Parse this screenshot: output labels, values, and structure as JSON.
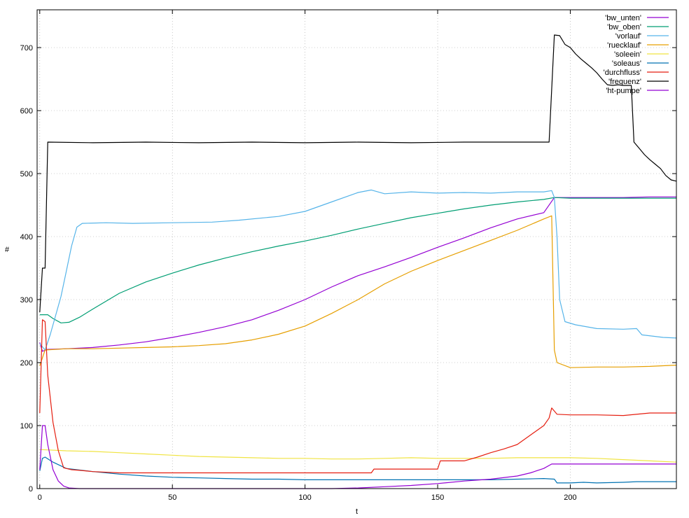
{
  "chart_data": {
    "type": "line",
    "title": "",
    "xlabel": "t",
    "ylabel": "#",
    "xlim": [
      -1,
      240
    ],
    "ylim": [
      0,
      760
    ],
    "x_ticks": [
      0,
      50,
      100,
      150,
      200
    ],
    "y_ticks": [
      0,
      100,
      200,
      300,
      400,
      500,
      600,
      700
    ],
    "grid": true,
    "legend_position": "top-right",
    "series": [
      {
        "name": "'bw_unten'",
        "color": "#9400d3",
        "points": [
          [
            0,
            232
          ],
          [
            1,
            218
          ],
          [
            3,
            221
          ],
          [
            10,
            222
          ],
          [
            20,
            224
          ],
          [
            30,
            228
          ],
          [
            40,
            233
          ],
          [
            50,
            240
          ],
          [
            60,
            248
          ],
          [
            70,
            257
          ],
          [
            80,
            268
          ],
          [
            90,
            283
          ],
          [
            100,
            300
          ],
          [
            110,
            320
          ],
          [
            120,
            338
          ],
          [
            130,
            352
          ],
          [
            140,
            367
          ],
          [
            150,
            383
          ],
          [
            160,
            398
          ],
          [
            170,
            414
          ],
          [
            180,
            428
          ],
          [
            190,
            438
          ],
          [
            194,
            462
          ],
          [
            200,
            462
          ],
          [
            210,
            462
          ],
          [
            220,
            462
          ],
          [
            230,
            463
          ],
          [
            240,
            463
          ]
        ]
      },
      {
        "name": "'bw_oben'",
        "color": "#009e73",
        "points": [
          [
            0,
            276
          ],
          [
            3,
            276
          ],
          [
            5,
            270
          ],
          [
            8,
            263
          ],
          [
            11,
            264
          ],
          [
            15,
            272
          ],
          [
            20,
            285
          ],
          [
            30,
            310
          ],
          [
            40,
            328
          ],
          [
            50,
            342
          ],
          [
            60,
            355
          ],
          [
            70,
            366
          ],
          [
            80,
            376
          ],
          [
            90,
            385
          ],
          [
            100,
            393
          ],
          [
            110,
            402
          ],
          [
            120,
            412
          ],
          [
            130,
            421
          ],
          [
            140,
            430
          ],
          [
            150,
            437
          ],
          [
            160,
            444
          ],
          [
            170,
            450
          ],
          [
            180,
            455
          ],
          [
            190,
            459
          ],
          [
            194,
            462
          ],
          [
            200,
            461
          ],
          [
            210,
            461
          ],
          [
            220,
            461
          ],
          [
            230,
            461
          ],
          [
            240,
            461
          ]
        ]
      },
      {
        "name": "'vorlauf'",
        "color": "#56b4e9",
        "points": [
          [
            0,
            230
          ],
          [
            2,
            220
          ],
          [
            4,
            245
          ],
          [
            6,
            275
          ],
          [
            8,
            305
          ],
          [
            10,
            345
          ],
          [
            12,
            385
          ],
          [
            14,
            415
          ],
          [
            16,
            421
          ],
          [
            25,
            422
          ],
          [
            35,
            421
          ],
          [
            50,
            422
          ],
          [
            65,
            423
          ],
          [
            75,
            426
          ],
          [
            90,
            432
          ],
          [
            100,
            440
          ],
          [
            110,
            455
          ],
          [
            120,
            470
          ],
          [
            125,
            474
          ],
          [
            130,
            468
          ],
          [
            140,
            471
          ],
          [
            150,
            469
          ],
          [
            160,
            470
          ],
          [
            170,
            469
          ],
          [
            180,
            471
          ],
          [
            190,
            471
          ],
          [
            193,
            473
          ],
          [
            194,
            462
          ],
          [
            195,
            400
          ],
          [
            196,
            300
          ],
          [
            198,
            265
          ],
          [
            202,
            260
          ],
          [
            210,
            254
          ],
          [
            220,
            253
          ],
          [
            225,
            254
          ],
          [
            227,
            244
          ],
          [
            235,
            240
          ],
          [
            240,
            239
          ]
        ]
      },
      {
        "name": "'ruecklauf'",
        "color": "#e69f00",
        "points": [
          [
            0,
            195
          ],
          [
            2,
            220
          ],
          [
            10,
            222
          ],
          [
            20,
            222
          ],
          [
            30,
            223
          ],
          [
            40,
            224
          ],
          [
            50,
            225
          ],
          [
            60,
            227
          ],
          [
            70,
            230
          ],
          [
            80,
            236
          ],
          [
            90,
            245
          ],
          [
            100,
            258
          ],
          [
            110,
            278
          ],
          [
            120,
            300
          ],
          [
            130,
            325
          ],
          [
            140,
            345
          ],
          [
            150,
            362
          ],
          [
            160,
            378
          ],
          [
            170,
            394
          ],
          [
            180,
            410
          ],
          [
            190,
            428
          ],
          [
            193,
            433
          ],
          [
            194,
            220
          ],
          [
            195,
            200
          ],
          [
            200,
            192
          ],
          [
            210,
            193
          ],
          [
            220,
            193
          ],
          [
            230,
            194
          ],
          [
            240,
            196
          ]
        ]
      },
      {
        "name": "'soleein'",
        "color": "#f0e442",
        "points": [
          [
            0,
            62
          ],
          [
            10,
            60
          ],
          [
            20,
            59
          ],
          [
            30,
            57
          ],
          [
            40,
            55
          ],
          [
            50,
            53
          ],
          [
            60,
            51
          ],
          [
            70,
            50
          ],
          [
            80,
            49
          ],
          [
            90,
            48
          ],
          [
            100,
            48
          ],
          [
            110,
            47
          ],
          [
            120,
            47
          ],
          [
            130,
            48
          ],
          [
            140,
            49
          ],
          [
            150,
            48
          ],
          [
            160,
            48
          ],
          [
            170,
            48
          ],
          [
            180,
            49
          ],
          [
            190,
            49
          ],
          [
            195,
            49
          ],
          [
            200,
            49
          ],
          [
            210,
            48
          ],
          [
            220,
            46
          ],
          [
            230,
            44
          ],
          [
            240,
            42
          ]
        ]
      },
      {
        "name": "'soleaus'",
        "color": "#0072b2",
        "points": [
          [
            0,
            28
          ],
          [
            1,
            48
          ],
          [
            2,
            50
          ],
          [
            5,
            42
          ],
          [
            10,
            32
          ],
          [
            20,
            27
          ],
          [
            30,
            23
          ],
          [
            40,
            20
          ],
          [
            50,
            18
          ],
          [
            60,
            17
          ],
          [
            70,
            16
          ],
          [
            80,
            15
          ],
          [
            90,
            15
          ],
          [
            100,
            14
          ],
          [
            110,
            14
          ],
          [
            120,
            14
          ],
          [
            130,
            14
          ],
          [
            140,
            14
          ],
          [
            150,
            14
          ],
          [
            160,
            14
          ],
          [
            170,
            14
          ],
          [
            180,
            15
          ],
          [
            190,
            16
          ],
          [
            194,
            15
          ],
          [
            195,
            9
          ],
          [
            200,
            9
          ],
          [
            205,
            10
          ],
          [
            210,
            9
          ],
          [
            220,
            10
          ],
          [
            225,
            11
          ],
          [
            230,
            11
          ],
          [
            240,
            11
          ]
        ]
      },
      {
        "name": "'durchfluss'",
        "color": "#e51e10",
        "points": [
          [
            0,
            120
          ],
          [
            1,
            268
          ],
          [
            2,
            265
          ],
          [
            3,
            180
          ],
          [
            5,
            105
          ],
          [
            7,
            60
          ],
          [
            9,
            33
          ],
          [
            12,
            30
          ],
          [
            15,
            29
          ],
          [
            20,
            27
          ],
          [
            30,
            25
          ],
          [
            60,
            25
          ],
          [
            90,
            25
          ],
          [
            100,
            25
          ],
          [
            110,
            25
          ],
          [
            125,
            25
          ],
          [
            126,
            31
          ],
          [
            150,
            31
          ],
          [
            151,
            44
          ],
          [
            160,
            44
          ],
          [
            165,
            50
          ],
          [
            170,
            57
          ],
          [
            175,
            63
          ],
          [
            180,
            70
          ],
          [
            185,
            85
          ],
          [
            190,
            100
          ],
          [
            192,
            112
          ],
          [
            193,
            128
          ],
          [
            195,
            118
          ],
          [
            200,
            117
          ],
          [
            210,
            117
          ],
          [
            220,
            116
          ],
          [
            230,
            120
          ],
          [
            240,
            120
          ]
        ]
      },
      {
        "name": "'frequenz'",
        "color": "#000000",
        "points": [
          [
            0,
            280
          ],
          [
            1,
            350
          ],
          [
            2,
            350
          ],
          [
            3,
            550
          ],
          [
            20,
            549
          ],
          [
            40,
            550
          ],
          [
            60,
            549
          ],
          [
            80,
            550
          ],
          [
            100,
            549
          ],
          [
            120,
            550
          ],
          [
            140,
            549
          ],
          [
            160,
            550
          ],
          [
            180,
            550
          ],
          [
            192,
            550
          ],
          [
            194,
            720
          ],
          [
            196,
            719
          ],
          [
            198,
            705
          ],
          [
            200,
            700
          ],
          [
            202,
            690
          ],
          [
            204,
            682
          ],
          [
            206,
            675
          ],
          [
            208,
            668
          ],
          [
            210,
            660
          ],
          [
            212,
            650
          ],
          [
            214,
            641
          ],
          [
            216,
            640
          ],
          [
            218,
            641
          ],
          [
            220,
            640
          ],
          [
            222,
            640
          ],
          [
            223,
            640
          ],
          [
            224,
            550
          ],
          [
            226,
            540
          ],
          [
            228,
            530
          ],
          [
            230,
            522
          ],
          [
            232,
            515
          ],
          [
            234,
            508
          ],
          [
            236,
            497
          ],
          [
            238,
            490
          ],
          [
            240,
            488
          ]
        ]
      },
      {
        "name": "'ht-pumpe'",
        "color": "#9400d3",
        "points": [
          [
            0,
            30
          ],
          [
            1,
            100
          ],
          [
            2,
            100
          ],
          [
            3,
            70
          ],
          [
            5,
            30
          ],
          [
            7,
            12
          ],
          [
            9,
            4
          ],
          [
            11,
            1
          ],
          [
            15,
            0
          ],
          [
            40,
            0
          ],
          [
            80,
            0
          ],
          [
            110,
            0
          ],
          [
            120,
            1
          ],
          [
            130,
            3
          ],
          [
            140,
            5
          ],
          [
            150,
            8
          ],
          [
            160,
            12
          ],
          [
            170,
            15
          ],
          [
            180,
            20
          ],
          [
            185,
            25
          ],
          [
            190,
            32
          ],
          [
            193,
            39
          ],
          [
            200,
            39
          ],
          [
            210,
            39
          ],
          [
            220,
            39
          ],
          [
            230,
            39
          ],
          [
            240,
            39
          ]
        ]
      }
    ]
  }
}
